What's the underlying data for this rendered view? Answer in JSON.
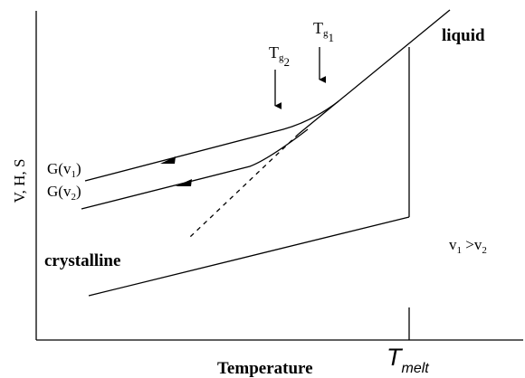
{
  "diagram": {
    "y_axis_label": "V, H, S",
    "x_axis_label": "Temperature",
    "tmelt_label": {
      "main": "T",
      "sub": "melt"
    },
    "liquid_label": "liquid",
    "crystalline_label": "crystalline",
    "g_v1_label": {
      "main": "G(v",
      "sub": "1",
      "end": ")"
    },
    "g_v2_label": {
      "main": "G(v",
      "sub": "2",
      "end": ")"
    },
    "tg1_label": {
      "main": "T",
      "sub1": "g",
      "sub2": "1"
    },
    "tg2_label": {
      "main": "T",
      "sub1": "g",
      "sub2": "2"
    },
    "rate_relation": {
      "a": "v",
      "a_sub": "1",
      "op": " >",
      "b": "v",
      "b_sub": "2"
    }
  }
}
